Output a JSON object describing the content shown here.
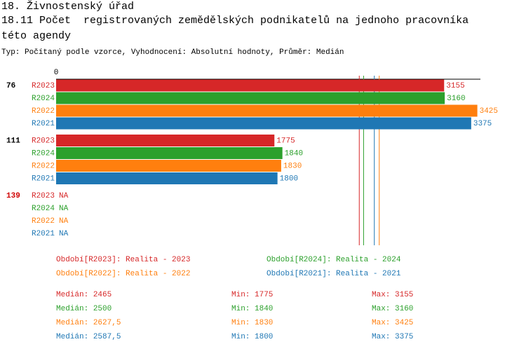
{
  "header": {
    "line1": "18. Živnostenský úřad",
    "title": "18.11 Počet  registrovaných zemědělských podnikatelů na jednoho pracovníka  této agendy",
    "subtitle": "Typ: Počítaný podle vzorce, Vyhodnocení: Absolutní hodnoty, Průměr: Medián"
  },
  "chart_data": {
    "type": "bar",
    "orientation": "horizontal",
    "categories": [
      "76",
      "111",
      "139"
    ],
    "highlight": [
      false,
      false,
      true
    ],
    "highlight_color": "#d00000",
    "xlim": [
      0,
      3450
    ],
    "xticks": [
      0
    ],
    "median_lines": true,
    "stat_labels": {
      "median": "Medián:",
      "min": "Min:",
      "max": "Max:"
    },
    "series": [
      {
        "name": "R2023",
        "legend": "Období[R2023]: Realita - 2023",
        "color": "#d62728",
        "values": [
          3155,
          1775,
          null
        ],
        "value_labels": [
          null,
          null,
          "NA"
        ],
        "median": 2465,
        "min": 1775,
        "max": 3155
      },
      {
        "name": "R2024",
        "legend": "Období[R2024]: Realita - 2024",
        "color": "#2ca02c",
        "values": [
          3160,
          1840,
          null
        ],
        "value_labels": [
          null,
          null,
          "NA"
        ],
        "median": 2500,
        "min": 1840,
        "max": 3160
      },
      {
        "name": "R2022",
        "legend": "Období[R2022]: Realita - 2022",
        "color": "#ff7f0e",
        "values": [
          3425,
          1830,
          null
        ],
        "value_labels": [
          null,
          null,
          "NA"
        ],
        "median": {
          "value": 2627.5,
          "label": "2627,5"
        },
        "min": 1830,
        "max": 3425
      },
      {
        "name": "R2021",
        "legend": "Období[R2021]: Realita - 2021",
        "color": "#1f77b4",
        "values": [
          3375,
          1800,
          null
        ],
        "value_labels": [
          null,
          null,
          "NA"
        ],
        "median": {
          "value": 2587.5,
          "label": "2587,5"
        },
        "min": 1800,
        "max": 3375
      }
    ]
  }
}
